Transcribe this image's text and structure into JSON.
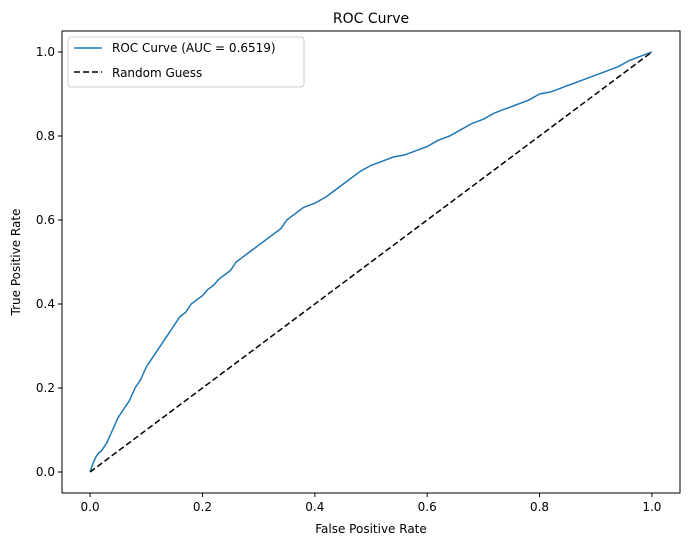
{
  "chart_data": {
    "type": "line",
    "title": "ROC Curve",
    "xlabel": "False Positive Rate",
    "ylabel": "True Positive Rate",
    "xlim": [
      -0.05,
      1.05
    ],
    "ylim": [
      -0.05,
      1.05
    ],
    "xticks": [
      0.0,
      0.2,
      0.4,
      0.6,
      0.8,
      1.0
    ],
    "xtick_labels": [
      "0.0",
      "0.2",
      "0.4",
      "0.6",
      "0.8",
      "1.0"
    ],
    "yticks": [
      0.0,
      0.2,
      0.4,
      0.6,
      0.8,
      1.0
    ],
    "ytick_labels": [
      "0.0",
      "0.2",
      "0.4",
      "0.6",
      "0.8",
      "1.0"
    ],
    "grid": false,
    "legend_position": "upper-left",
    "series": [
      {
        "name": "ROC Curve (AUC = 0.6519)",
        "color": "#1f77b4",
        "style": "solid",
        "x": [
          0.0,
          0.005,
          0.01,
          0.015,
          0.02,
          0.03,
          0.04,
          0.05,
          0.06,
          0.07,
          0.08,
          0.09,
          0.1,
          0.11,
          0.12,
          0.13,
          0.14,
          0.15,
          0.16,
          0.17,
          0.18,
          0.19,
          0.2,
          0.21,
          0.22,
          0.23,
          0.24,
          0.25,
          0.26,
          0.27,
          0.28,
          0.29,
          0.3,
          0.31,
          0.32,
          0.33,
          0.34,
          0.35,
          0.36,
          0.37,
          0.38,
          0.39,
          0.4,
          0.42,
          0.44,
          0.46,
          0.48,
          0.5,
          0.52,
          0.54,
          0.56,
          0.58,
          0.6,
          0.62,
          0.64,
          0.66,
          0.68,
          0.7,
          0.72,
          0.74,
          0.76,
          0.78,
          0.8,
          0.82,
          0.84,
          0.86,
          0.88,
          0.9,
          0.92,
          0.94,
          0.96,
          0.98,
          0.99,
          1.0
        ],
        "y": [
          0.0,
          0.02,
          0.035,
          0.045,
          0.05,
          0.07,
          0.1,
          0.13,
          0.15,
          0.17,
          0.2,
          0.22,
          0.25,
          0.27,
          0.29,
          0.31,
          0.33,
          0.35,
          0.37,
          0.38,
          0.4,
          0.41,
          0.42,
          0.435,
          0.445,
          0.46,
          0.47,
          0.48,
          0.5,
          0.51,
          0.52,
          0.53,
          0.54,
          0.55,
          0.56,
          0.57,
          0.58,
          0.6,
          0.61,
          0.62,
          0.63,
          0.635,
          0.64,
          0.655,
          0.675,
          0.695,
          0.715,
          0.73,
          0.74,
          0.75,
          0.755,
          0.765,
          0.775,
          0.79,
          0.8,
          0.815,
          0.83,
          0.84,
          0.855,
          0.865,
          0.875,
          0.885,
          0.9,
          0.905,
          0.915,
          0.925,
          0.935,
          0.945,
          0.955,
          0.965,
          0.98,
          0.99,
          0.995,
          1.0
        ]
      },
      {
        "name": "Random Guess",
        "color": "#000000",
        "style": "dashed",
        "x": [
          0.0,
          1.0
        ],
        "y": [
          0.0,
          1.0
        ]
      }
    ]
  }
}
